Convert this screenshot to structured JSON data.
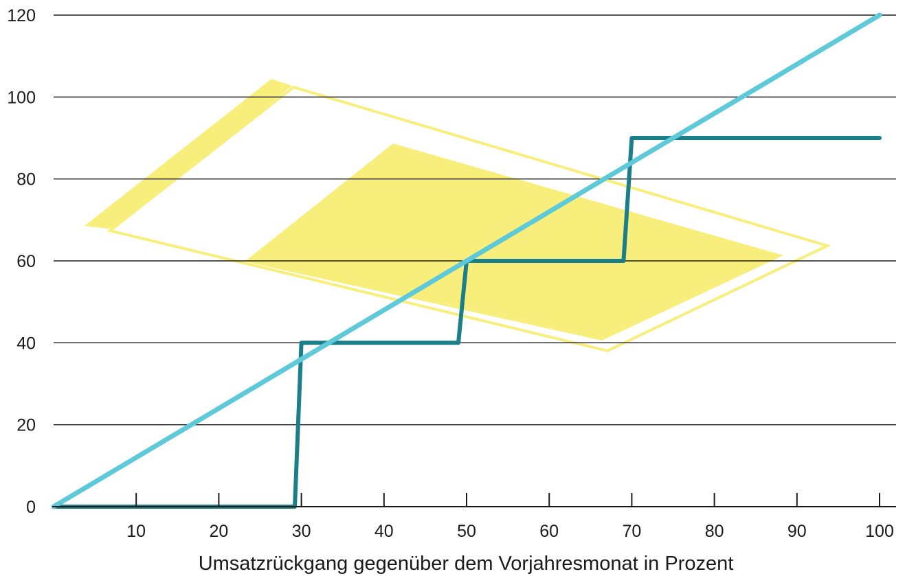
{
  "chart_data": {
    "type": "line",
    "xlabel": "Umsatzrückgang gegenüber dem Vorjahresmonat in Prozent",
    "ylabel": "",
    "xlim": [
      0,
      100
    ],
    "ylim": [
      0,
      120
    ],
    "x_ticks": [
      10,
      20,
      30,
      40,
      50,
      60,
      70,
      80,
      90,
      100
    ],
    "y_ticks": [
      0,
      20,
      40,
      60,
      80,
      100,
      120
    ],
    "grid": "horizontal",
    "series": [
      {
        "color": "#1b7f8a",
        "shape": "step",
        "points": [
          [
            0,
            0
          ],
          [
            29.2,
            0
          ],
          [
            30,
            40
          ],
          [
            49,
            40
          ],
          [
            50,
            60
          ],
          [
            69,
            60
          ],
          [
            70,
            90
          ],
          [
            100,
            90
          ]
        ]
      },
      {
        "color": "#5ec9d8",
        "shape": "linear",
        "points": [
          [
            0,
            0
          ],
          [
            100,
            120
          ]
        ]
      }
    ],
    "background_shapes": {
      "color": "#f8ee7c",
      "description": "decorative yellow outlined and filled parallelograms"
    }
  }
}
